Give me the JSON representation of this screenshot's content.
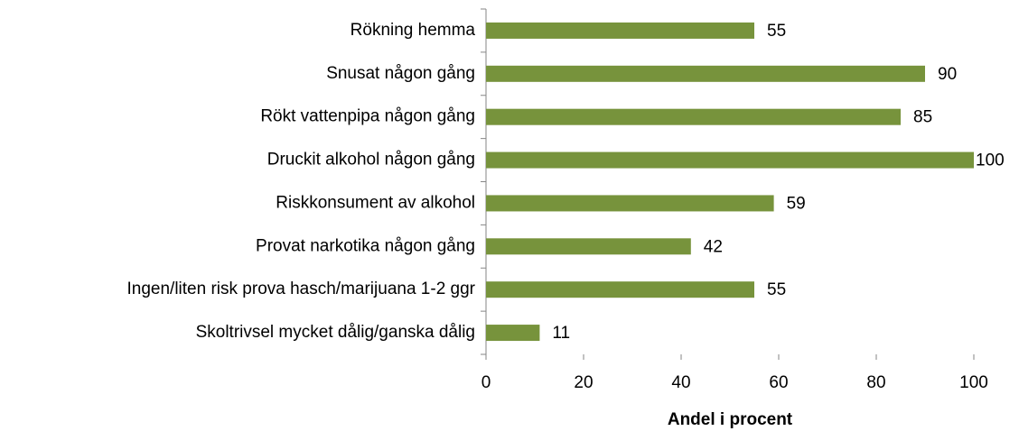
{
  "chart_data": {
    "type": "bar",
    "orientation": "horizontal",
    "categories": [
      "Rökning hemma",
      "Snusat någon gång",
      "Rökt vattenpipa någon gång",
      "Druckit alkohol någon gång",
      "Riskkonsument av alkohol",
      "Provat narkotika någon gång",
      "Ingen/liten risk prova hasch/marijuana 1-2 ggr",
      "Skoltrivsel mycket dålig/ganska dålig"
    ],
    "values": [
      55,
      90,
      85,
      100,
      59,
      42,
      55,
      11
    ],
    "color": "#77933c",
    "xlabel": "Andel i procent",
    "xlim": [
      0,
      100
    ],
    "xticks": [
      0,
      20,
      40,
      60,
      80,
      100
    ],
    "grid": false
  }
}
